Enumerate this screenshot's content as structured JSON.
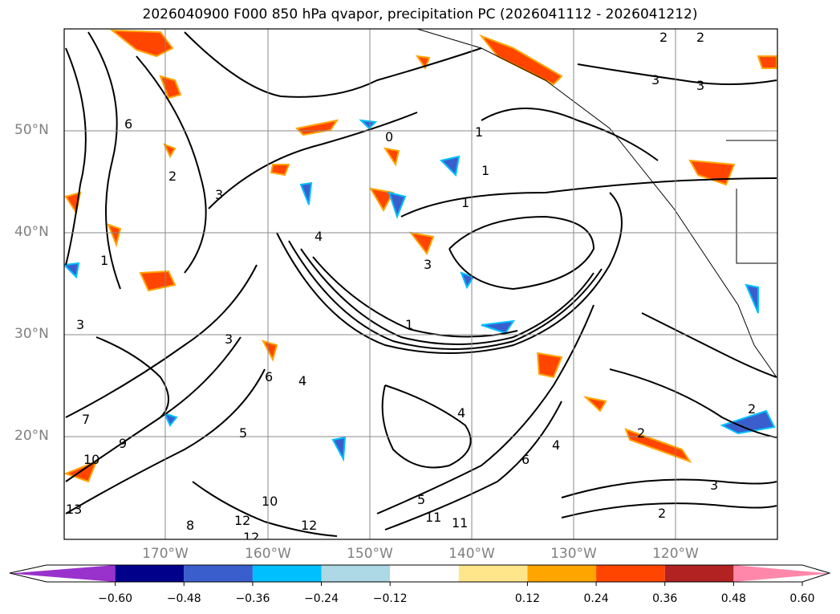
{
  "map": {
    "title": "2026040900 F000 850 hPa qvapor, precipitation PC (2026041112 - 2026041212)",
    "latitude_labels": [
      "50°N",
      "40°N",
      "30°N",
      "20°N"
    ],
    "longitude_labels": [
      "170°W",
      "160°W",
      "150°W",
      "140°W",
      "130°W",
      "120°W"
    ],
    "contour_labels": [
      "2",
      "2",
      "3",
      "3",
      "1",
      "0",
      "6",
      "2",
      "3",
      "1",
      "1",
      "4",
      "1",
      "3",
      "1",
      "3",
      "6",
      "5",
      "3",
      "4",
      "2",
      "2",
      "9",
      "10",
      "7",
      "6",
      "4",
      "5",
      "8",
      "12",
      "12",
      "10",
      "11",
      "11",
      "12",
      "13",
      "4",
      "2",
      "3"
    ]
  },
  "colorbar": {
    "colors": [
      "#9932cc",
      "#00008b",
      "#3a5fcd",
      "#00bfff",
      "#add8e6",
      "#ffffff",
      "#ffe68a",
      "#ffa500",
      "#ff4500",
      "#b22222",
      "#ff88aa"
    ],
    "tick_labels": [
      "−0.60",
      "−0.48",
      "−0.36",
      "−0.24",
      "−0.12",
      "0.12",
      "0.24",
      "0.36",
      "0.48",
      "0.60"
    ]
  }
}
